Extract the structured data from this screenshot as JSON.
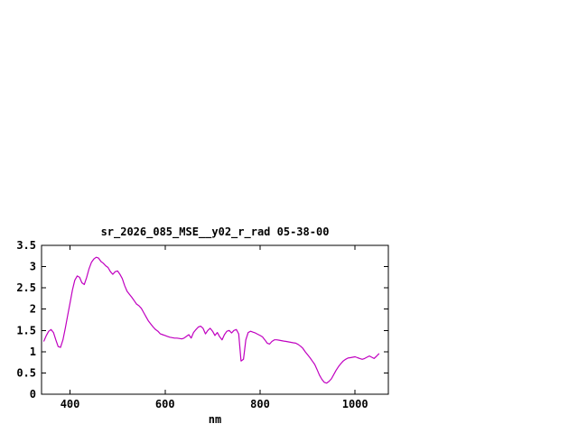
{
  "page": {
    "background_color": "#ffffff"
  },
  "chart_data": {
    "type": "line",
    "title": "sr_2026_085_MSE__y02_r_rad 05-38-00",
    "xlabel": "nm",
    "ylabel": "",
    "xlim": [
      340,
      1070
    ],
    "ylim": [
      0,
      3.5
    ],
    "x_ticks": [
      400,
      600,
      800,
      1000
    ],
    "x_tick_labels": [
      "400",
      "600",
      "800",
      "1000"
    ],
    "y_ticks": [
      0,
      0.5,
      1,
      1.5,
      2,
      2.5,
      3,
      3.5
    ],
    "y_tick_labels": [
      "0",
      "0.5",
      "1",
      "1.5",
      "2",
      "2.5",
      "3",
      "3.5"
    ],
    "grid": "off",
    "legend": "none",
    "line_color": "#c000c0",
    "axis_color": "#000000",
    "series": [
      {
        "name": "sr_2026_085_MSE__y02_r_rad",
        "x": [
          345,
          350,
          355,
          360,
          365,
          370,
          375,
          380,
          385,
          390,
          395,
          400,
          405,
          410,
          415,
          420,
          425,
          430,
          435,
          440,
          445,
          450,
          455,
          460,
          465,
          470,
          475,
          480,
          485,
          490,
          495,
          500,
          505,
          510,
          515,
          520,
          525,
          530,
          535,
          540,
          545,
          550,
          555,
          560,
          565,
          570,
          575,
          580,
          585,
          590,
          595,
          600,
          605,
          610,
          615,
          620,
          625,
          630,
          635,
          640,
          645,
          650,
          655,
          660,
          665,
          670,
          675,
          680,
          685,
          690,
          695,
          700,
          705,
          710,
          715,
          720,
          725,
          730,
          735,
          740,
          745,
          750,
          755,
          760,
          765,
          770,
          775,
          780,
          785,
          790,
          795,
          800,
          805,
          810,
          815,
          820,
          825,
          830,
          835,
          840,
          845,
          850,
          855,
          860,
          865,
          870,
          875,
          880,
          885,
          890,
          895,
          900,
          905,
          910,
          915,
          920,
          925,
          930,
          935,
          940,
          945,
          950,
          955,
          960,
          965,
          970,
          975,
          980,
          985,
          990,
          995,
          1000,
          1005,
          1010,
          1015,
          1020,
          1025,
          1030,
          1035,
          1040,
          1045,
          1050
        ],
        "y": [
          1.25,
          1.38,
          1.48,
          1.52,
          1.45,
          1.28,
          1.12,
          1.1,
          1.28,
          1.55,
          1.85,
          2.15,
          2.45,
          2.68,
          2.78,
          2.75,
          2.62,
          2.58,
          2.75,
          2.95,
          3.1,
          3.18,
          3.22,
          3.2,
          3.12,
          3.08,
          3.02,
          2.98,
          2.88,
          2.82,
          2.88,
          2.9,
          2.82,
          2.72,
          2.55,
          2.42,
          2.35,
          2.28,
          2.2,
          2.12,
          2.08,
          2.02,
          1.92,
          1.82,
          1.72,
          1.65,
          1.58,
          1.52,
          1.48,
          1.42,
          1.4,
          1.38,
          1.36,
          1.34,
          1.33,
          1.32,
          1.32,
          1.31,
          1.3,
          1.32,
          1.36,
          1.4,
          1.32,
          1.45,
          1.52,
          1.58,
          1.6,
          1.55,
          1.42,
          1.5,
          1.55,
          1.48,
          1.38,
          1.45,
          1.35,
          1.28,
          1.4,
          1.48,
          1.5,
          1.44,
          1.5,
          1.52,
          1.42,
          0.78,
          0.82,
          1.28,
          1.45,
          1.48,
          1.46,
          1.44,
          1.41,
          1.38,
          1.35,
          1.28,
          1.2,
          1.18,
          1.24,
          1.28,
          1.28,
          1.27,
          1.26,
          1.25,
          1.24,
          1.23,
          1.22,
          1.21,
          1.2,
          1.17,
          1.13,
          1.08,
          1.0,
          0.93,
          0.86,
          0.78,
          0.7,
          0.58,
          0.45,
          0.35,
          0.28,
          0.26,
          0.3,
          0.36,
          0.46,
          0.56,
          0.65,
          0.72,
          0.78,
          0.82,
          0.85,
          0.86,
          0.87,
          0.88,
          0.86,
          0.84,
          0.82,
          0.84,
          0.87,
          0.9,
          0.87,
          0.84,
          0.89,
          0.95
        ]
      }
    ]
  }
}
